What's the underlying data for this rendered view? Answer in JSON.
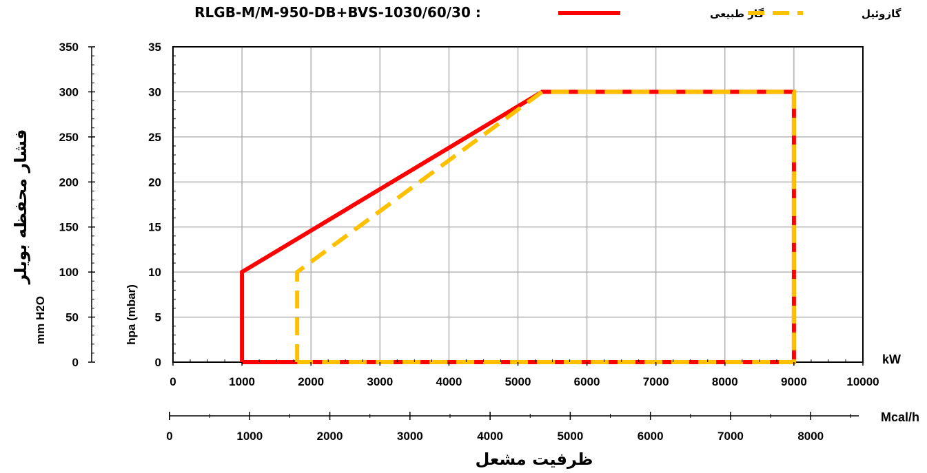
{
  "chart_data": {
    "type": "line",
    "title": "RLGB-M/M-950-DB+BVS-1030/60/30 :",
    "x_primary": {
      "unit": "kW",
      "lim": [
        0,
        10000
      ],
      "ticks": [
        0,
        1000,
        2000,
        3000,
        4000,
        5000,
        6000,
        7000,
        8000,
        9000,
        10000
      ]
    },
    "x_secondary": {
      "unit": "Mcal/h",
      "lim": [
        0,
        8600
      ],
      "ticks": [
        0,
        1000,
        2000,
        3000,
        4000,
        5000,
        6000,
        7000,
        8000
      ]
    },
    "xlabel": "ظرفیت مشعل",
    "y_left": {
      "label": "فشار محفظه بویلر",
      "unit": "mm H2O",
      "lim": [
        0,
        350
      ],
      "ticks": [
        0,
        50,
        100,
        150,
        200,
        250,
        300,
        350
      ]
    },
    "y_right": {
      "unit": "hpa (mbar)",
      "lim": [
        0,
        35
      ],
      "ticks": [
        0,
        5,
        10,
        15,
        20,
        25,
        30,
        35
      ]
    },
    "grid": true,
    "legend_position": "top-right",
    "series": [
      {
        "name": "گاز طبیعی",
        "color": "#ff0000",
        "style": "solid",
        "x": [
          1000,
          1000,
          5350,
          9000,
          9000,
          1000
        ],
        "y": [
          0,
          10,
          30,
          30,
          0,
          0
        ]
      },
      {
        "name": "گازوئیل",
        "color": "#ffc000",
        "style": "dashed",
        "x": [
          1800,
          1800,
          5350,
          9000,
          9000,
          1800
        ],
        "y": [
          0,
          10,
          30,
          30,
          0,
          0
        ]
      }
    ]
  }
}
